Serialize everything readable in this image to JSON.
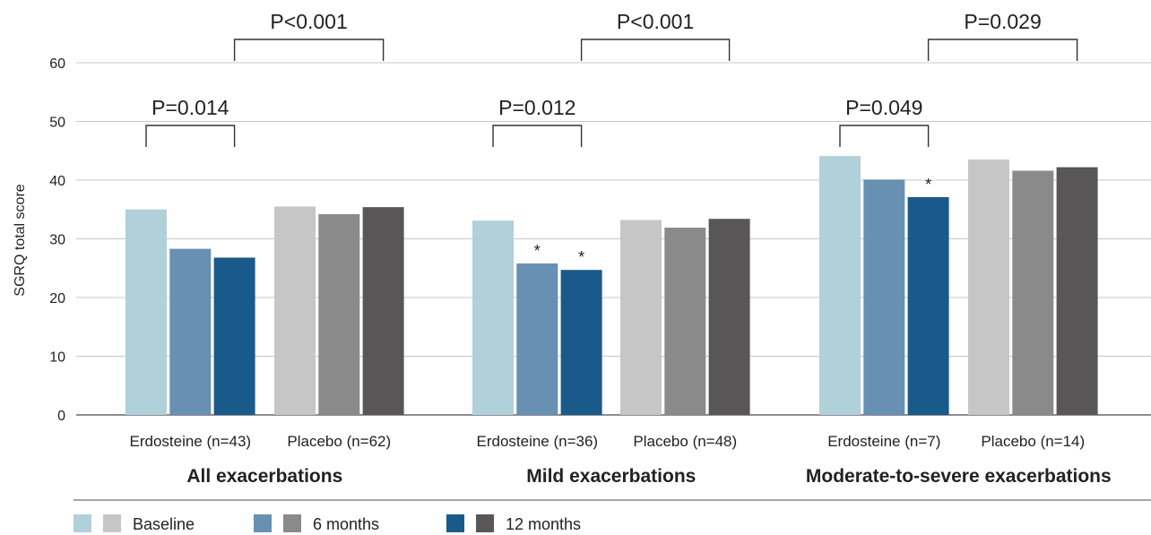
{
  "chart_data": {
    "type": "bar",
    "ylabel": "SGRQ total score",
    "ylim": [
      0,
      60
    ],
    "yticks": [
      0,
      10,
      20,
      30,
      40,
      50,
      60
    ],
    "grid": true,
    "legend_placement": "bottom-left",
    "legend": [
      {
        "label": "Baseline",
        "colors": [
          "#b0d0da",
          "#c6c6c6"
        ]
      },
      {
        "label": "6 months",
        "colors": [
          "#6790b2",
          "#8a8a8a"
        ]
      },
      {
        "label": "12 months",
        "colors": [
          "#1a5a8a",
          "#595657"
        ]
      }
    ],
    "panels": [
      {
        "title": "All exacerbations",
        "groups": [
          {
            "label": "Erdosteine (n=43)",
            "arm": "erdosteine",
            "values": [
              35.0,
              28.3,
              26.8
            ],
            "stars": [
              false,
              false,
              false
            ]
          },
          {
            "label": "Placebo (n=62)",
            "arm": "placebo",
            "values": [
              35.5,
              34.2,
              35.4
            ],
            "stars": [
              false,
              false,
              false
            ]
          }
        ],
        "p_within": "P=0.014",
        "p_between": "P<0.001"
      },
      {
        "title": "Mild exacerbations",
        "groups": [
          {
            "label": "Erdosteine (n=36)",
            "arm": "erdosteine",
            "values": [
              33.1,
              25.8,
              24.7
            ],
            "stars": [
              false,
              true,
              true
            ]
          },
          {
            "label": "Placebo (n=48)",
            "arm": "placebo",
            "values": [
              33.2,
              31.9,
              33.4
            ],
            "stars": [
              false,
              false,
              false
            ]
          }
        ],
        "p_within": "P=0.012",
        "p_between": "P<0.001"
      },
      {
        "title": "Moderate-to-severe exacerbations",
        "groups": [
          {
            "label": "Erdosteine (n=7)",
            "arm": "erdosteine",
            "values": [
              44.1,
              40.1,
              37.1
            ],
            "stars": [
              false,
              false,
              true
            ]
          },
          {
            "label": "Placebo (n=14)",
            "arm": "placebo",
            "values": [
              43.5,
              41.6,
              42.2
            ],
            "stars": [
              false,
              false,
              false
            ]
          }
        ],
        "p_within": "P=0.049",
        "p_between": "P=0.029"
      }
    ],
    "star_symbol": "*",
    "colors": {
      "erdosteine": [
        "#b0d0da",
        "#6790b2",
        "#1a5a8a"
      ],
      "placebo": [
        "#c6c6c6",
        "#8a8a8a",
        "#595657"
      ],
      "grid": "#c8c8c8",
      "axis": "#666666",
      "text": "#222222"
    }
  }
}
